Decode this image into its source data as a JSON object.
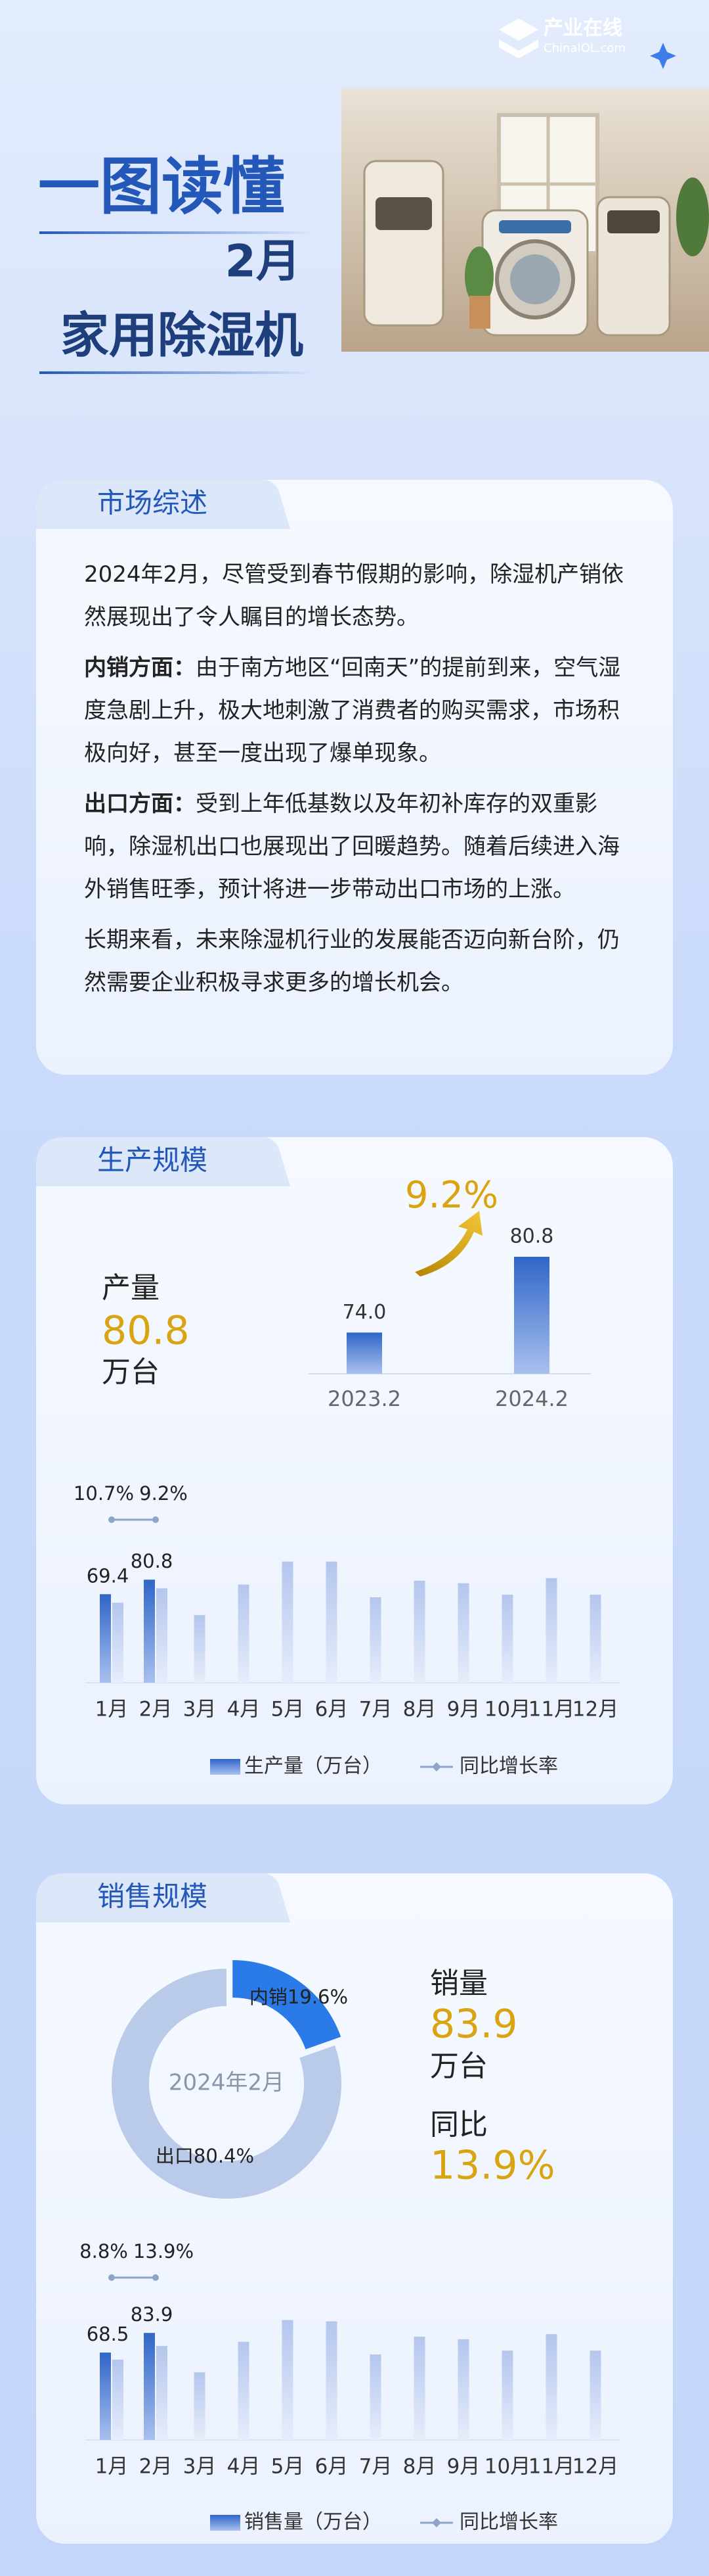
{
  "header": {
    "logo": "产业在线",
    "logo_sub": "ChinaIOL.com",
    "title": "一图读懂",
    "month": "2月",
    "subtitle": "家用除湿机"
  },
  "market": {
    "title": "市场综述",
    "paragraphs": [
      {
        "text": "2024年2月，尽管受到春节假期的影响，除湿机产销依然展现出了令人瞩目的增长态势。"
      },
      {
        "label": "内销方面：",
        "text": "由于南方地区“回南天”的提前到来，空气湿度急剧上升，极大地刺激了消费者的购买需求，市场积极向好，甚至一度出现了爆单现象。"
      },
      {
        "label": "出口方面：",
        "text": "受到上年低基数以及年初补库存的双重影响，除湿机出口也展现出了回暖趋势。随着后续进入海外销售旺季，预计将进一步带动出口市场的上涨。"
      },
      {
        "text": "长期来看，未来除湿机行业的发展能否迈向新台阶，仍然需要企业积极寻求更多的增长机会。"
      }
    ]
  },
  "production": {
    "title": "生产规模",
    "stat_label": "产量",
    "stat_value": 80.8,
    "stat_unit": "万台"
  },
  "sales": {
    "title": "销售规模",
    "stat_label": "销量",
    "stat_value": 83.9,
    "stat_unit": "万台",
    "yoy_label": "同比",
    "yoy_value": "13.9%"
  },
  "chart_data": [
    {
      "type": "bar",
      "categories": [
        "2023.2",
        "2024.2"
      ],
      "values": [
        74.0,
        80.8
      ],
      "value_labels": [
        "74.0",
        "80.8"
      ],
      "annotation": "9.2%",
      "color": "#3a78d4"
    },
    {
      "type": "bar",
      "categories": [
        "1月",
        "2月",
        "3月",
        "4月",
        "5月",
        "6月",
        "7月",
        "8月",
        "9月",
        "10月",
        "11月",
        "12月"
      ],
      "series": [
        {
          "name": "生产量（万台）",
          "color": "#2f66c8",
          "values": [
            69.4,
            80.8,
            null,
            null,
            null,
            null,
            null,
            null,
            null,
            null,
            null,
            null
          ]
        },
        {
          "color": "#b4c6ee",
          "values": [
            62.7,
            74.0,
            53,
            77,
            95,
            95,
            67,
            80,
            78,
            69,
            82,
            69
          ]
        },
        {
          "name": "同比增长率",
          "type": "line",
          "color": "#8ea4c8",
          "values": [
            10.7,
            9.2,
            null,
            null,
            null,
            null,
            null,
            null,
            null,
            null,
            null,
            null
          ],
          "value_labels": [
            "10.7%",
            "9.2%",
            null,
            null,
            null,
            null,
            null,
            null,
            null,
            null,
            null,
            null
          ]
        }
      ]
    },
    {
      "type": "pie",
      "center_label": "2024年2月",
      "values": [
        19.6,
        80.4
      ],
      "value_labels": [
        "内销19.6%",
        "出口80.4%"
      ],
      "colors": [
        "#2a7ae8",
        "#b9cbe9"
      ]
    },
    {
      "type": "bar",
      "categories": [
        "1月",
        "2月",
        "3月",
        "4月",
        "5月",
        "6月",
        "7月",
        "8月",
        "9月",
        "10月",
        "11月",
        "12月"
      ],
      "series": [
        {
          "name": "销售量（万台）",
          "color": "#2f66c8",
          "values": [
            68.5,
            83.9,
            null,
            null,
            null,
            null,
            null,
            null,
            null,
            null,
            null,
            null
          ]
        },
        {
          "color": "#b4c6ee",
          "values": [
            63.0,
            73.7,
            53,
            77,
            94,
            93,
            67,
            81,
            79,
            70,
            83,
            70
          ]
        },
        {
          "name": "同比增长率",
          "type": "line",
          "color": "#8ea4c8",
          "values": [
            8.8,
            13.9,
            null,
            null,
            null,
            null,
            null,
            null,
            null,
            null,
            null,
            null
          ],
          "value_labels": [
            "8.8%",
            "13.9%",
            null,
            null,
            null,
            null,
            null,
            null,
            null,
            null,
            null,
            null
          ]
        }
      ]
    }
  ]
}
